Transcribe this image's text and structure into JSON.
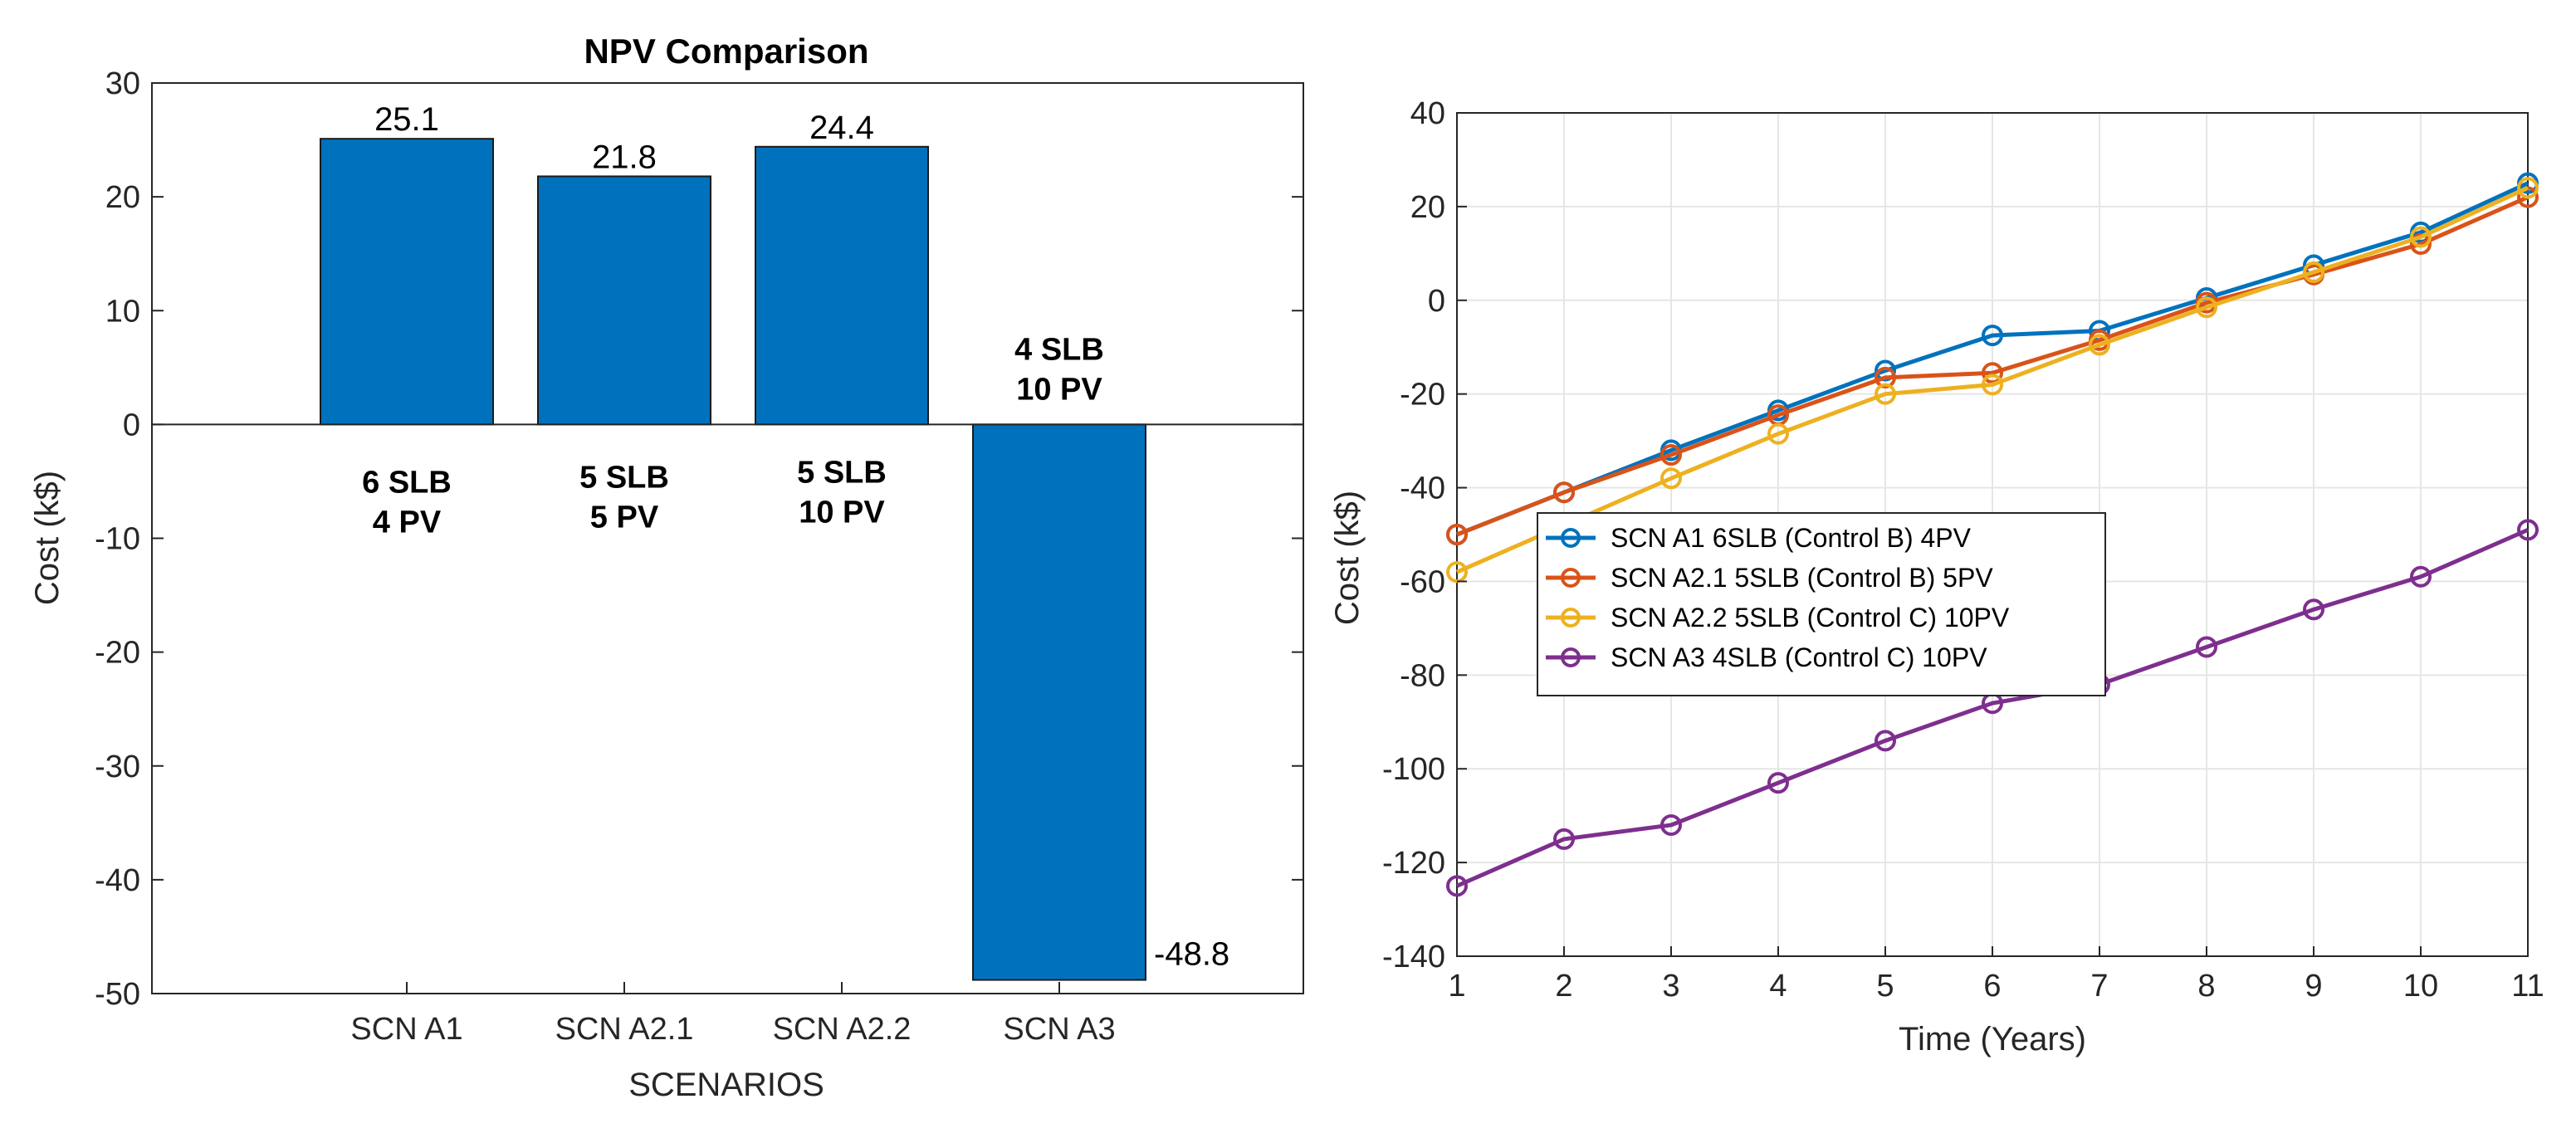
{
  "colors": {
    "bar": "#0072BD",
    "series": [
      "#0072BD",
      "#D95319",
      "#EDB120",
      "#7E2F8E"
    ],
    "grid": "#e6e6e6",
    "axis": "#262626"
  },
  "chart_data": [
    {
      "type": "bar",
      "title": "NPV Comparison",
      "xlabel": "SCENARIOS",
      "ylabel": "Cost (k$)",
      "categories": [
        "SCN A1",
        "SCN A2.1",
        "SCN A2.2",
        "SCN A3"
      ],
      "values": [
        25.1,
        21.8,
        24.4,
        -48.8
      ],
      "value_labels": [
        "25.1",
        "21.8",
        "24.4",
        "-48.8"
      ],
      "ylim": [
        -50,
        30
      ],
      "yticks": [
        -50,
        -40,
        -30,
        -20,
        -10,
        0,
        10,
        20,
        30
      ],
      "annotations": [
        {
          "category": "SCN A1",
          "lines": [
            "6 SLB",
            "4 PV"
          ]
        },
        {
          "category": "SCN A2.1",
          "lines": [
            "5 SLB",
            "5 PV"
          ]
        },
        {
          "category": "SCN A2.2",
          "lines": [
            "5 SLB",
            "10 PV"
          ]
        },
        {
          "category": "SCN A3",
          "lines": [
            "4 SLB",
            "10 PV"
          ]
        }
      ],
      "grid": false
    },
    {
      "type": "line",
      "xlabel": "Time (Years)",
      "ylabel": "Cost (k$)",
      "x": [
        1,
        2,
        3,
        4,
        5,
        6,
        7,
        8,
        9,
        10,
        11
      ],
      "xlim": [
        1,
        11
      ],
      "ylim": [
        -140,
        40
      ],
      "yticks": [
        -140,
        -120,
        -100,
        -80,
        -60,
        -40,
        -20,
        0,
        20,
        40
      ],
      "grid": true,
      "legend_position": "left-middle",
      "series": [
        {
          "name": "SCN A1 6SLB (Control B) 4PV",
          "values": [
            -50,
            -41,
            -32,
            -23.5,
            -15,
            -7.5,
            -6.5,
            0.5,
            7.5,
            14.5,
            25
          ]
        },
        {
          "name": "SCN A2.1 5SLB (Control B) 5PV",
          "values": [
            -50,
            -41,
            -33,
            -24.5,
            -16.5,
            -15.5,
            -8.5,
            -0.5,
            5.5,
            12,
            22
          ]
        },
        {
          "name": "SCN A2.2 5SLB (Control C) 10PV",
          "values": [
            -58,
            -48,
            -38,
            -28.5,
            -20,
            -18,
            -9.5,
            -1.5,
            6,
            13.5,
            24
          ]
        },
        {
          "name": "SCN A3 4SLB (Control C) 10PV",
          "values": [
            -125,
            -115,
            -112,
            -103,
            -94,
            -86,
            -82,
            -74,
            -66,
            -59,
            -49
          ]
        }
      ]
    }
  ]
}
